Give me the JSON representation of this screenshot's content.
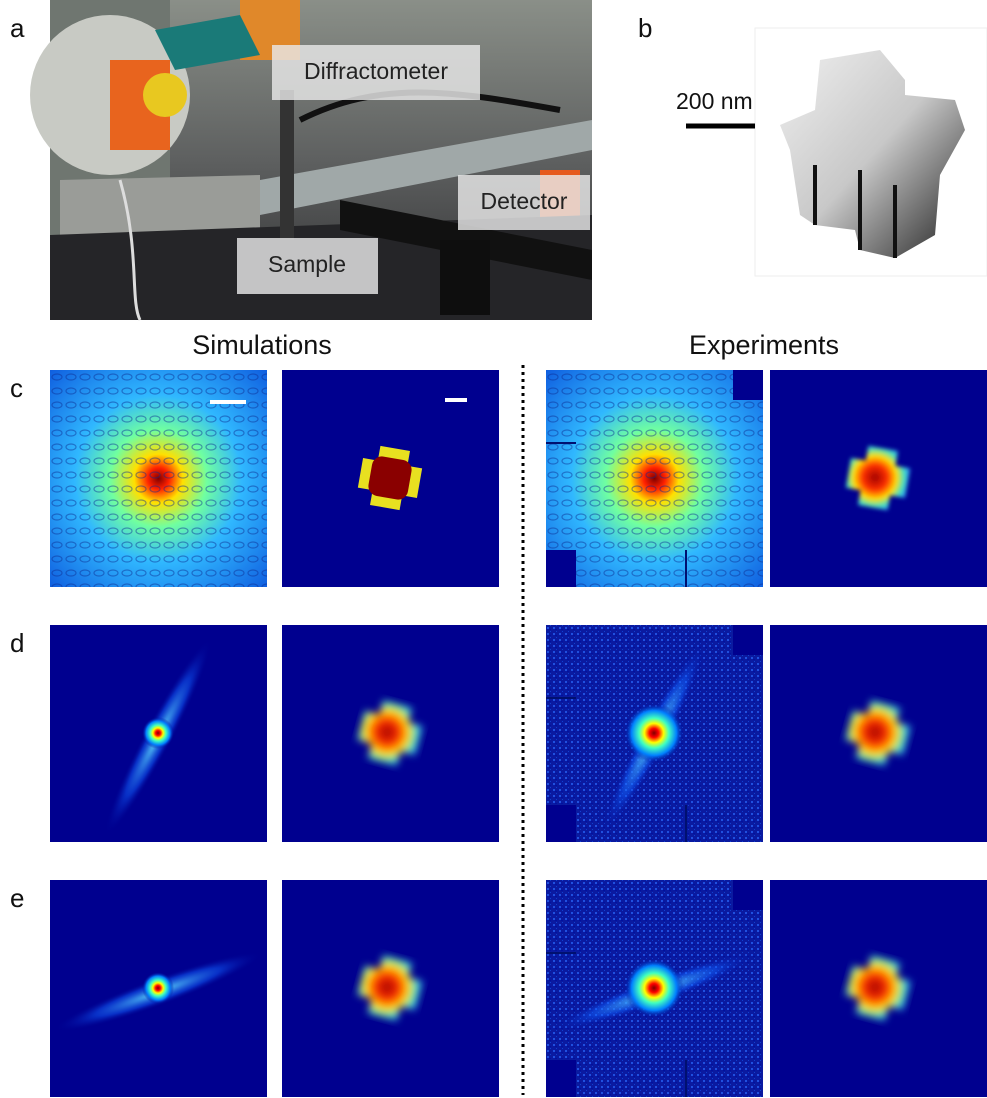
{
  "panels": {
    "a": {
      "label": "a",
      "annotations": [
        "Diffractometer",
        "Detector",
        "Sample"
      ]
    },
    "b": {
      "label": "b",
      "scale_bar": "200 nm"
    }
  },
  "columns": [
    "Simulations",
    "Experiments"
  ],
  "rows": [
    "c",
    "d",
    "e"
  ]
}
